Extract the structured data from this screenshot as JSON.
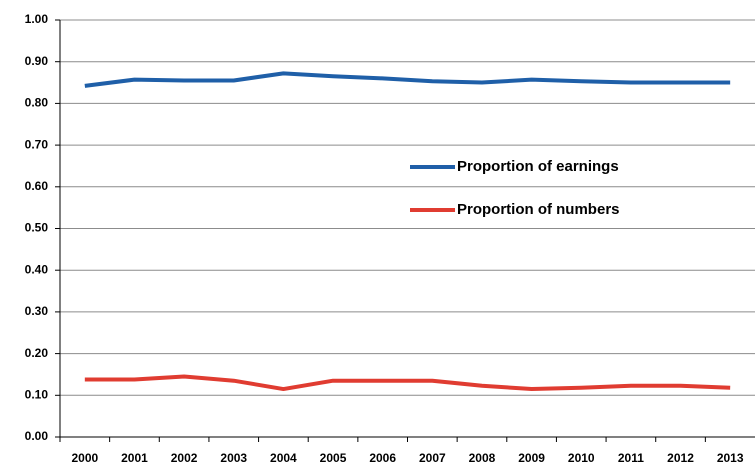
{
  "chart_data": {
    "type": "line",
    "categories": [
      "2000",
      "2001",
      "2002",
      "2003",
      "2004",
      "2005",
      "2006",
      "2007",
      "2008",
      "2009",
      "2010",
      "2011",
      "2012",
      "2013"
    ],
    "series": [
      {
        "name": "Proportion of earnings",
        "color": "#1f5fa8",
        "values": [
          0.842,
          0.857,
          0.855,
          0.855,
          0.872,
          0.865,
          0.86,
          0.853,
          0.85,
          0.857,
          0.853,
          0.85,
          0.85,
          0.85
        ]
      },
      {
        "name": "Proportion of numbers",
        "color": "#e03c31",
        "values": [
          0.138,
          0.138,
          0.145,
          0.135,
          0.115,
          0.135,
          0.135,
          0.135,
          0.123,
          0.115,
          0.118,
          0.123,
          0.123,
          0.118
        ]
      }
    ],
    "ylim": [
      0,
      1
    ],
    "yticks": [
      {
        "value": 0,
        "label": "0.00"
      },
      {
        "value": 0.1,
        "label": "0.10"
      },
      {
        "value": 0.2,
        "label": "0.20"
      },
      {
        "value": 0.3,
        "label": "0.30"
      },
      {
        "value": 0.4,
        "label": "0.40"
      },
      {
        "value": 0.5,
        "label": "0.50"
      },
      {
        "value": 0.6,
        "label": "0.60"
      },
      {
        "value": 0.7,
        "label": "0.70"
      },
      {
        "value": 0.8,
        "label": "0.80"
      },
      {
        "value": 0.9,
        "label": "0.90"
      },
      {
        "value": 1,
        "label": "1.00"
      }
    ],
    "grid": true,
    "legend_position": "right"
  }
}
